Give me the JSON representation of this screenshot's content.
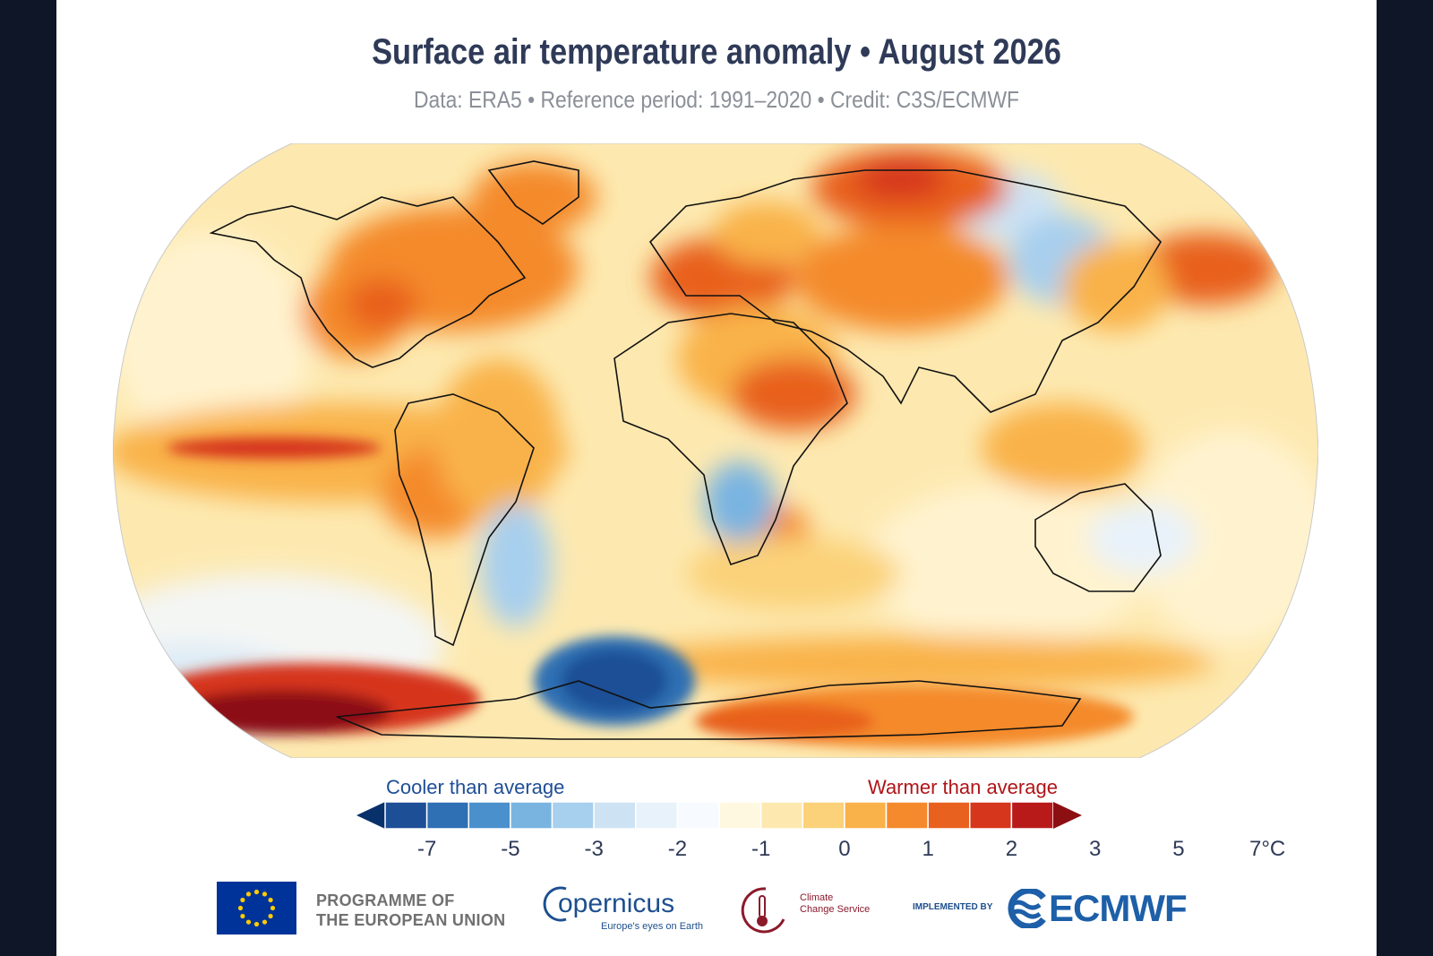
{
  "header": {
    "title": "Surface air temperature anomaly • August 2026",
    "subtitle": "Data: ERA5 • Reference period: 1991–2020 • Credit: C3S/ECMWF"
  },
  "legend": {
    "cool_label": "Cooler than average",
    "warm_label": "Warmer than average",
    "ticks": [
      "-7",
      "-5",
      "-3",
      "-2",
      "-1",
      "0",
      "1",
      "2",
      "3",
      "5",
      "7°C"
    ],
    "colors": [
      "#08306b",
      "#1d4f96",
      "#2f6fb3",
      "#4a90cc",
      "#79b4e1",
      "#a7cfee",
      "#cde3f4",
      "#e8f2fa",
      "#f7fbff",
      "#fff8e1",
      "#fde9b0",
      "#fbd279",
      "#f9b24a",
      "#f48a2c",
      "#e8611f",
      "#d6361b",
      "#b81a1a",
      "#8c0f12"
    ],
    "accent_cool": "#1f4e96",
    "accent_warm": "#b01418"
  },
  "map": {
    "projection": "Robinson",
    "variable": "surface air temperature anomaly",
    "base_color": "#fde9b0",
    "features": [
      {
        "name": "east-pacific-warm-tongue",
        "color": "#e8611f"
      },
      {
        "name": "west-antarctic-warm-anomaly",
        "color": "#b81a1a"
      },
      {
        "name": "weddell-sea-cold-anomaly",
        "color": "#1d4f96"
      },
      {
        "name": "east-antarctic-warm-anomaly",
        "color": "#f48a2c"
      },
      {
        "name": "north-siberia-warm-anomaly",
        "color": "#e8611f"
      },
      {
        "name": "europe-mediterranean-warm-anomaly",
        "color": "#e8611f"
      },
      {
        "name": "canada-warm-anomaly",
        "color": "#f48a2c"
      },
      {
        "name": "north-pacific-warm-anomaly",
        "color": "#e8611f"
      },
      {
        "name": "southern-africa-cool-patch",
        "color": "#79b4e1"
      },
      {
        "name": "south-america-cool-patch",
        "color": "#a7cfee"
      }
    ]
  },
  "logos": {
    "eu_line1": "PROGRAMME OF",
    "eu_line2": "THE EUROPEAN UNION",
    "copernicus_name": "opernicus",
    "copernicus_tagline": "Europe's eyes on Earth",
    "c3s_line1": "Climate",
    "c3s_line2": "Change Service",
    "implemented_by": "IMPLEMENTED BY",
    "ecmwf": "ECMWF"
  }
}
